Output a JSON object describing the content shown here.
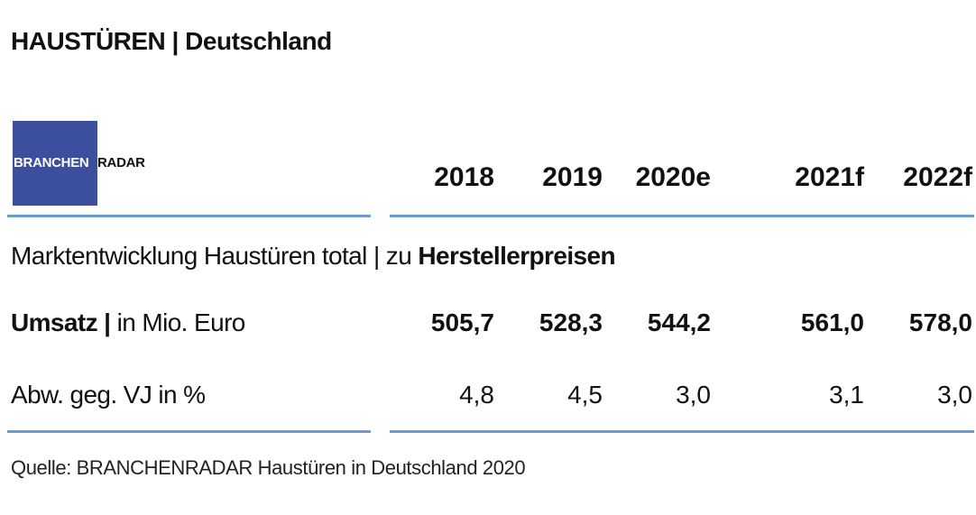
{
  "header": {
    "title": "HAUSTÜREN | Deutschland"
  },
  "logo": {
    "left": "BRANCHEN",
    "right": "RADAR"
  },
  "table": {
    "columns": [
      "2018",
      "2019",
      "2020e",
      "2021f",
      "2022f"
    ],
    "section": {
      "text": "Marktentwicklung Haustüren total | zu ",
      "emphasis": "Herstellerpreisen"
    },
    "rows": [
      {
        "label": {
          "strong": "Umsatz |",
          "text": " in Mio. Euro"
        },
        "values": [
          "505,7",
          "528,3",
          "544,2",
          "561,0",
          "578,0"
        ],
        "bold": true
      },
      {
        "label": {
          "text": "Abw. geg. VJ in %"
        },
        "values": [
          "4,8",
          "4,5",
          "3,0",
          "3,1",
          "3,0"
        ],
        "bold": false
      }
    ]
  },
  "source": "Quelle: BRANCHENRADAR Haustüren in Deutschland 2020"
}
